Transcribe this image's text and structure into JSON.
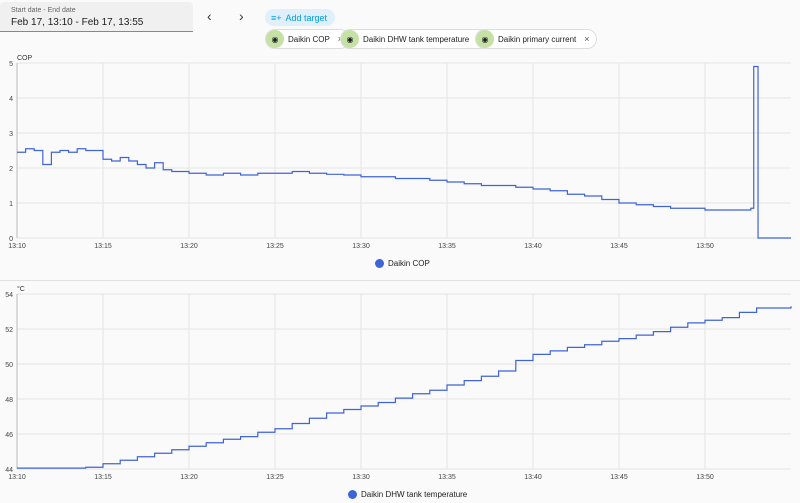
{
  "date_range": {
    "label": "Start date - End date",
    "value": "Feb 17, 13:10 - Feb 17, 13:55"
  },
  "nav": {
    "prev_icon": "chevron-left-icon",
    "next_icon": "chevron-right-icon",
    "prev": "‹",
    "next": "›"
  },
  "add_target": {
    "label": "Add target",
    "icon": "playlist-add-icon"
  },
  "targets": [
    {
      "label": "Daikin COP"
    },
    {
      "label": "Daikin DHW tank temperature"
    },
    {
      "label": "Daikin primary current"
    }
  ],
  "colors": {
    "line": "#3f64d8",
    "chip_eye": "#c5e1a5",
    "accent": "#039be5"
  },
  "chart_data": [
    {
      "type": "line",
      "step": true,
      "ylabel": "COP",
      "ylim": [
        0,
        5
      ],
      "yticks": [
        "0",
        "1",
        "2",
        "3",
        "4",
        "5"
      ],
      "xticks": [
        "13:10",
        "13:15",
        "13:20",
        "13:25",
        "13:30",
        "13:35",
        "13:40",
        "13:45",
        "13:50"
      ],
      "xlim": [
        "13:10",
        "13:55"
      ],
      "grid": true,
      "legend": "bottom",
      "series": [
        {
          "name": "Daikin COP",
          "points": [
            [
              "13:10:00",
              2.45
            ],
            [
              "13:10:30",
              2.55
            ],
            [
              "13:11:00",
              2.5
            ],
            [
              "13:11:30",
              2.1
            ],
            [
              "13:12:00",
              2.45
            ],
            [
              "13:12:30",
              2.5
            ],
            [
              "13:13:00",
              2.45
            ],
            [
              "13:13:30",
              2.55
            ],
            [
              "13:14:00",
              2.5
            ],
            [
              "13:14:30",
              2.5
            ],
            [
              "13:15:00",
              2.25
            ],
            [
              "13:15:30",
              2.2
            ],
            [
              "13:16:00",
              2.3
            ],
            [
              "13:16:30",
              2.2
            ],
            [
              "13:17:00",
              2.1
            ],
            [
              "13:17:30",
              2.0
            ],
            [
              "13:18:00",
              2.15
            ],
            [
              "13:18:30",
              1.95
            ],
            [
              "13:19:00",
              1.9
            ],
            [
              "13:20:00",
              1.85
            ],
            [
              "13:21:00",
              1.8
            ],
            [
              "13:22:00",
              1.85
            ],
            [
              "13:23:00",
              1.8
            ],
            [
              "13:24:00",
              1.85
            ],
            [
              "13:25:00",
              1.85
            ],
            [
              "13:26:00",
              1.9
            ],
            [
              "13:27:00",
              1.85
            ],
            [
              "13:28:00",
              1.82
            ],
            [
              "13:29:00",
              1.8
            ],
            [
              "13:30:00",
              1.75
            ],
            [
              "13:31:00",
              1.75
            ],
            [
              "13:32:00",
              1.7
            ],
            [
              "13:33:00",
              1.7
            ],
            [
              "13:34:00",
              1.65
            ],
            [
              "13:35:00",
              1.6
            ],
            [
              "13:36:00",
              1.55
            ],
            [
              "13:37:00",
              1.5
            ],
            [
              "13:38:00",
              1.5
            ],
            [
              "13:39:00",
              1.45
            ],
            [
              "13:40:00",
              1.4
            ],
            [
              "13:41:00",
              1.35
            ],
            [
              "13:42:00",
              1.25
            ],
            [
              "13:43:00",
              1.2
            ],
            [
              "13:44:00",
              1.1
            ],
            [
              "13:45:00",
              1.0
            ],
            [
              "13:46:00",
              0.95
            ],
            [
              "13:47:00",
              0.9
            ],
            [
              "13:48:00",
              0.85
            ],
            [
              "13:49:00",
              0.85
            ],
            [
              "13:50:00",
              0.8
            ],
            [
              "13:51:00",
              0.8
            ],
            [
              "13:52:00",
              0.8
            ],
            [
              "13:52:40",
              0.85
            ],
            [
              "13:52:50",
              4.9
            ],
            [
              "13:53:05",
              0
            ],
            [
              "13:55:00",
              0
            ]
          ]
        }
      ]
    },
    {
      "type": "line",
      "step": true,
      "ylabel": "°C",
      "ylim": [
        44,
        54
      ],
      "yticks": [
        "44",
        "46",
        "48",
        "50",
        "52",
        "54"
      ],
      "xticks": [
        "13:10",
        "13:15",
        "13:20",
        "13:25",
        "13:30",
        "13:35",
        "13:40",
        "13:45",
        "13:50"
      ],
      "xlim": [
        "13:10",
        "13:55"
      ],
      "grid": true,
      "legend": "bottom",
      "series": [
        {
          "name": "Daikin DHW tank temperature",
          "points": [
            [
              "13:10:00",
              44.05
            ],
            [
              "13:14:00",
              44.1
            ],
            [
              "13:15:00",
              44.3
            ],
            [
              "13:16:00",
              44.5
            ],
            [
              "13:17:00",
              44.7
            ],
            [
              "13:18:00",
              44.9
            ],
            [
              "13:19:00",
              45.1
            ],
            [
              "13:20:00",
              45.3
            ],
            [
              "13:21:00",
              45.5
            ],
            [
              "13:22:00",
              45.7
            ],
            [
              "13:23:00",
              45.85
            ],
            [
              "13:24:00",
              46.1
            ],
            [
              "13:25:00",
              46.3
            ],
            [
              "13:26:00",
              46.6
            ],
            [
              "13:27:00",
              46.9
            ],
            [
              "13:28:00",
              47.2
            ],
            [
              "13:29:00",
              47.4
            ],
            [
              "13:30:00",
              47.6
            ],
            [
              "13:31:00",
              47.8
            ],
            [
              "13:32:00",
              48.05
            ],
            [
              "13:33:00",
              48.3
            ],
            [
              "13:34:00",
              48.5
            ],
            [
              "13:35:00",
              48.8
            ],
            [
              "13:36:00",
              49.05
            ],
            [
              "13:37:00",
              49.3
            ],
            [
              "13:38:00",
              49.6
            ],
            [
              "13:39:00",
              50.2
            ],
            [
              "13:40:00",
              50.55
            ],
            [
              "13:41:00",
              50.75
            ],
            [
              "13:42:00",
              50.95
            ],
            [
              "13:43:00",
              51.1
            ],
            [
              "13:44:00",
              51.3
            ],
            [
              "13:45:00",
              51.45
            ],
            [
              "13:46:00",
              51.65
            ],
            [
              "13:47:00",
              51.85
            ],
            [
              "13:48:00",
              52.1
            ],
            [
              "13:49:00",
              52.35
            ],
            [
              "13:50:00",
              52.5
            ],
            [
              "13:51:00",
              52.65
            ],
            [
              "13:52:00",
              52.95
            ],
            [
              "13:53:00",
              53.2
            ],
            [
              "13:55:00",
              53.3
            ]
          ]
        }
      ]
    }
  ]
}
